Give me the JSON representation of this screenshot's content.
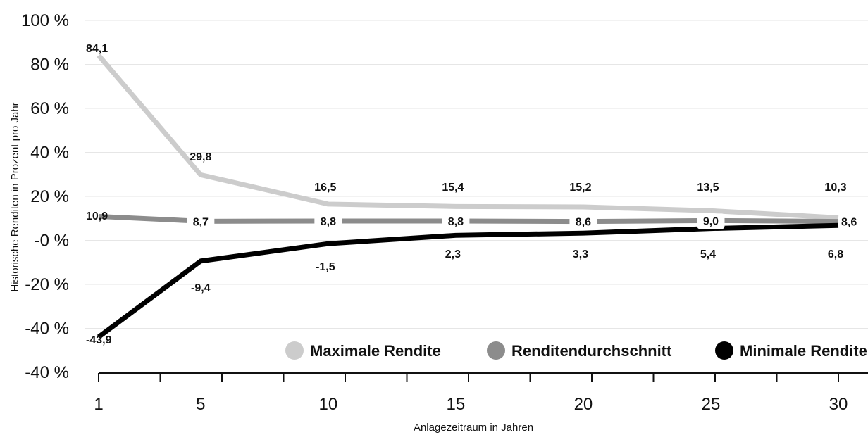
{
  "chart_data": {
    "type": "line",
    "x": [
      1,
      5,
      10,
      15,
      20,
      25,
      30
    ],
    "x_tick_labels": [
      "1",
      "5",
      "10",
      "15",
      "20",
      "25",
      "30"
    ],
    "y_tick_labels": [
      "100 %",
      "80 %",
      "60 %",
      "40 %",
      "20 %",
      "-0 %",
      "-20 %",
      "-40 %",
      "-40 %"
    ],
    "ylim": [
      -60,
      100
    ],
    "ylabel": "Historische Renditen in Prozent pro Jahr",
    "xlabel": "Anlagezeitraum in Jahren",
    "grid": "horizontal",
    "legend_position": "bottom-right",
    "series": [
      {
        "name": "Maximale Rendite",
        "color": "#cccccc",
        "values": [
          84.1,
          29.8,
          16.5,
          15.4,
          15.2,
          13.5,
          10.3
        ],
        "labels": [
          "84,1",
          "29,8",
          "16,5",
          "15,4",
          "15,2",
          "13,5",
          "10,3"
        ]
      },
      {
        "name": "Renditendurchschnitt",
        "color": "#8c8c8c",
        "values": [
          10.9,
          8.7,
          8.8,
          8.8,
          8.6,
          9.0,
          8.6
        ],
        "labels": [
          "10,9",
          "8,7",
          "8,8",
          "8,8",
          "8,6",
          "9,0",
          "8,6"
        ]
      },
      {
        "name": "Minimale Rendite",
        "color": "#000000",
        "values": [
          -43.9,
          -9.4,
          -1.5,
          2.3,
          3.3,
          5.4,
          6.8
        ],
        "labels": [
          "-43,9",
          "-9,4",
          "-1,5",
          "2,3",
          "3,3",
          "5,4",
          "6,8"
        ]
      }
    ]
  }
}
